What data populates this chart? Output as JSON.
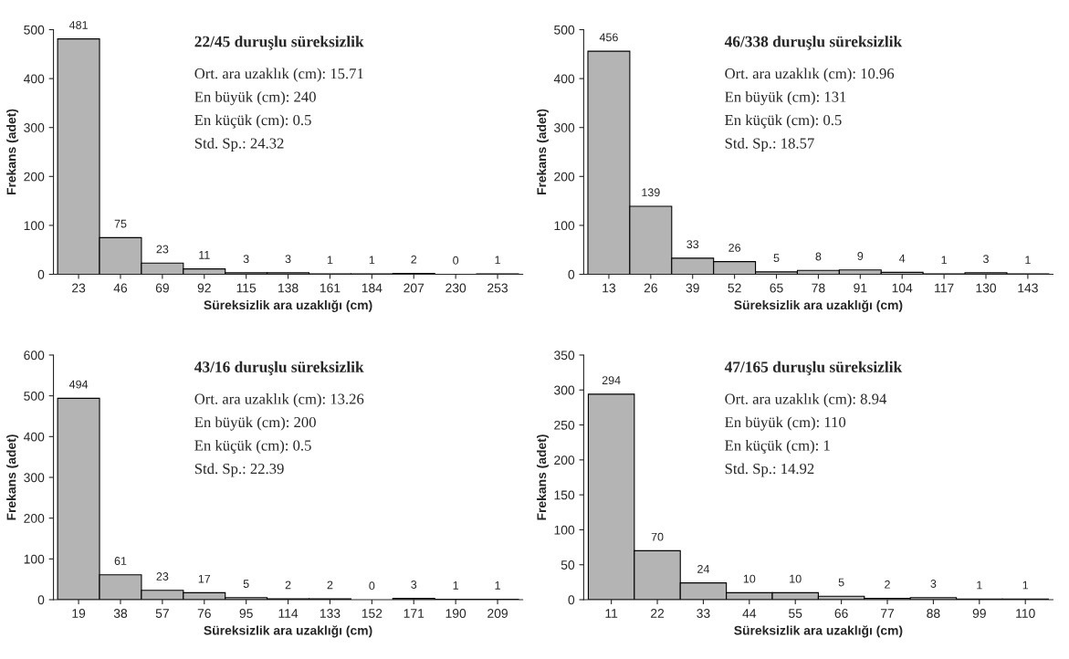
{
  "chart_data": [
    {
      "type": "bar",
      "title": "22/45 duruşlu süreksizlik",
      "xlabel": "Süreksizlik ara uzaklığı (cm)",
      "ylabel": "Frekans (adet)",
      "categories": [
        "23",
        "46",
        "69",
        "92",
        "115",
        "138",
        "161",
        "184",
        "207",
        "230",
        "253"
      ],
      "values": [
        481,
        75,
        23,
        11,
        3,
        3,
        1,
        1,
        2,
        0,
        1
      ],
      "color": "#b4b4b4",
      "ylim": [
        0,
        500
      ],
      "yticks": [
        0,
        100,
        200,
        300,
        400,
        500
      ],
      "data_labels": true,
      "grid": false,
      "legend": false,
      "annotations": [
        "Ort. ara uzaklık (cm): 15.71",
        "En büyük (cm): 240",
        "En küçük (cm): 0.5",
        "Std. Sp.: 24.32"
      ]
    },
    {
      "type": "bar",
      "title": "46/338 duruşlu süreksizlik",
      "xlabel": "Süreksizlik ara uzaklığı (cm)",
      "ylabel": "Frekans (adet)",
      "categories": [
        "13",
        "26",
        "39",
        "52",
        "65",
        "78",
        "91",
        "104",
        "117",
        "130",
        "143"
      ],
      "values": [
        456,
        139,
        33,
        26,
        5,
        8,
        9,
        4,
        1,
        3,
        1
      ],
      "color": "#b4b4b4",
      "ylim": [
        0,
        500
      ],
      "yticks": [
        0,
        100,
        200,
        300,
        400,
        500
      ],
      "data_labels": true,
      "grid": false,
      "legend": false,
      "annotations": [
        "Ort. ara uzaklık (cm): 10.96",
        "En büyük (cm): 131",
        "En küçük (cm): 0.5",
        "Std. Sp.: 18.57"
      ]
    },
    {
      "type": "bar",
      "title": "43/16 duruşlu süreksizlik",
      "xlabel": "Süreksizlik ara uzaklığı (cm)",
      "ylabel": "Frekans (adet)",
      "categories": [
        "19",
        "38",
        "57",
        "76",
        "95",
        "114",
        "133",
        "152",
        "171",
        "190",
        "209"
      ],
      "values": [
        494,
        61,
        23,
        17,
        5,
        2,
        2,
        0,
        3,
        1,
        1
      ],
      "color": "#b4b4b4",
      "ylim": [
        0,
        600
      ],
      "yticks": [
        0,
        100,
        200,
        300,
        400,
        500,
        600
      ],
      "data_labels": true,
      "grid": false,
      "legend": false,
      "annotations": [
        "Ort. ara uzaklık (cm): 13.26",
        "En büyük (cm): 200",
        "En küçük (cm): 0.5",
        "Std. Sp.: 22.39"
      ]
    },
    {
      "type": "bar",
      "title": "47/165 duruşlu süreksizlik",
      "xlabel": "Süreksizlik ara uzaklığı (cm)",
      "ylabel": "Frekans (adet)",
      "categories": [
        "11",
        "22",
        "33",
        "44",
        "55",
        "66",
        "77",
        "88",
        "99",
        "110"
      ],
      "values": [
        294,
        70,
        24,
        10,
        10,
        5,
        2,
        3,
        1,
        1
      ],
      "color": "#b4b4b4",
      "ylim": [
        0,
        350
      ],
      "yticks": [
        0,
        50,
        100,
        150,
        200,
        250,
        300,
        350
      ],
      "data_labels": true,
      "grid": false,
      "legend": false,
      "annotations": [
        "Ort. ara uzaklık (cm): 8.94",
        "En büyük (cm): 110",
        "En küçük (cm): 1",
        "Std. Sp.: 14.92"
      ]
    }
  ]
}
